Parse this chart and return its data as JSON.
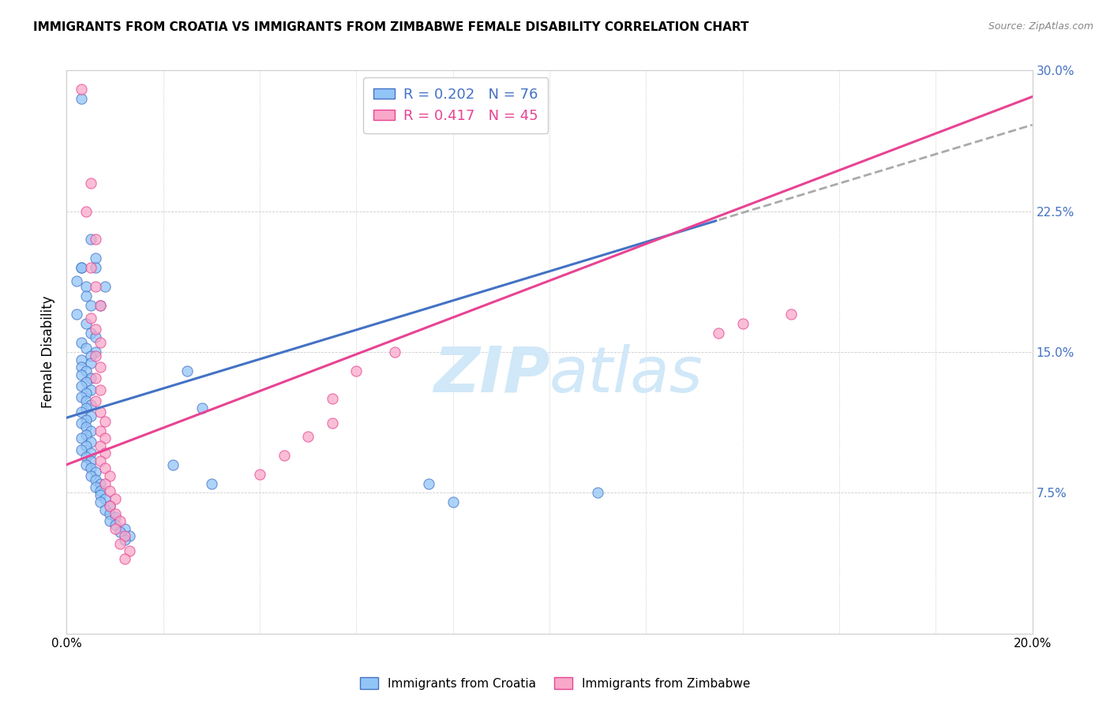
{
  "title": "IMMIGRANTS FROM CROATIA VS IMMIGRANTS FROM ZIMBABWE FEMALE DISABILITY CORRELATION CHART",
  "source": "Source: ZipAtlas.com",
  "ylabel": "Female Disability",
  "xlim": [
    0.0,
    0.2
  ],
  "ylim": [
    0.0,
    0.3
  ],
  "yticks": [
    0.075,
    0.15,
    0.225,
    0.3
  ],
  "ytick_labels": [
    "7.5%",
    "15.0%",
    "22.5%",
    "30.0%"
  ],
  "xticks": [
    0.0,
    0.02,
    0.04,
    0.06,
    0.08,
    0.1,
    0.12,
    0.14,
    0.16,
    0.18,
    0.2
  ],
  "croatia_color": "#92C5F7",
  "croatia_edge": "#4472C4",
  "zimbabwe_color": "#F9A8C9",
  "zimbabwe_edge": "#E84393",
  "croatia_R": 0.202,
  "croatia_N": 76,
  "zimbabwe_R": 0.417,
  "zimbabwe_N": 45,
  "croatia_line_color": "#4472C4",
  "zimbabwe_line_color": "#E84393",
  "dash_color": "#aaaaaa",
  "watermark_color": "#d0e8f8",
  "croatia_scatter": [
    [
      0.003,
      0.285
    ],
    [
      0.005,
      0.21
    ],
    [
      0.006,
      0.2
    ],
    [
      0.004,
      0.185
    ],
    [
      0.007,
      0.175
    ],
    [
      0.003,
      0.195
    ],
    [
      0.002,
      0.188
    ],
    [
      0.006,
      0.195
    ],
    [
      0.003,
      0.195
    ],
    [
      0.008,
      0.185
    ],
    [
      0.004,
      0.18
    ],
    [
      0.005,
      0.175
    ],
    [
      0.002,
      0.17
    ],
    [
      0.004,
      0.165
    ],
    [
      0.005,
      0.16
    ],
    [
      0.006,
      0.158
    ],
    [
      0.003,
      0.155
    ],
    [
      0.004,
      0.152
    ],
    [
      0.006,
      0.15
    ],
    [
      0.005,
      0.148
    ],
    [
      0.003,
      0.146
    ],
    [
      0.005,
      0.144
    ],
    [
      0.003,
      0.142
    ],
    [
      0.004,
      0.14
    ],
    [
      0.003,
      0.138
    ],
    [
      0.005,
      0.136
    ],
    [
      0.004,
      0.134
    ],
    [
      0.003,
      0.132
    ],
    [
      0.005,
      0.13
    ],
    [
      0.004,
      0.128
    ],
    [
      0.003,
      0.126
    ],
    [
      0.004,
      0.124
    ],
    [
      0.005,
      0.122
    ],
    [
      0.004,
      0.12
    ],
    [
      0.003,
      0.118
    ],
    [
      0.005,
      0.116
    ],
    [
      0.004,
      0.114
    ],
    [
      0.003,
      0.112
    ],
    [
      0.004,
      0.11
    ],
    [
      0.005,
      0.108
    ],
    [
      0.004,
      0.106
    ],
    [
      0.003,
      0.104
    ],
    [
      0.005,
      0.102
    ],
    [
      0.004,
      0.1
    ],
    [
      0.003,
      0.098
    ],
    [
      0.005,
      0.096
    ],
    [
      0.004,
      0.094
    ],
    [
      0.005,
      0.092
    ],
    [
      0.004,
      0.09
    ],
    [
      0.005,
      0.088
    ],
    [
      0.006,
      0.086
    ],
    [
      0.005,
      0.084
    ],
    [
      0.006,
      0.082
    ],
    [
      0.007,
      0.08
    ],
    [
      0.006,
      0.078
    ],
    [
      0.007,
      0.076
    ],
    [
      0.007,
      0.074
    ],
    [
      0.008,
      0.072
    ],
    [
      0.007,
      0.07
    ],
    [
      0.009,
      0.068
    ],
    [
      0.008,
      0.066
    ],
    [
      0.009,
      0.064
    ],
    [
      0.01,
      0.062
    ],
    [
      0.009,
      0.06
    ],
    [
      0.01,
      0.058
    ],
    [
      0.012,
      0.056
    ],
    [
      0.011,
      0.054
    ],
    [
      0.013,
      0.052
    ],
    [
      0.012,
      0.05
    ],
    [
      0.025,
      0.14
    ],
    [
      0.028,
      0.12
    ],
    [
      0.022,
      0.09
    ],
    [
      0.03,
      0.08
    ],
    [
      0.11,
      0.075
    ],
    [
      0.08,
      0.07
    ],
    [
      0.075,
      0.08
    ]
  ],
  "zimbabwe_scatter": [
    [
      0.003,
      0.29
    ],
    [
      0.005,
      0.24
    ],
    [
      0.004,
      0.225
    ],
    [
      0.006,
      0.21
    ],
    [
      0.005,
      0.195
    ],
    [
      0.006,
      0.185
    ],
    [
      0.007,
      0.175
    ],
    [
      0.005,
      0.168
    ],
    [
      0.006,
      0.162
    ],
    [
      0.007,
      0.155
    ],
    [
      0.006,
      0.148
    ],
    [
      0.007,
      0.142
    ],
    [
      0.006,
      0.136
    ],
    [
      0.007,
      0.13
    ],
    [
      0.006,
      0.124
    ],
    [
      0.007,
      0.118
    ],
    [
      0.008,
      0.113
    ],
    [
      0.007,
      0.108
    ],
    [
      0.008,
      0.104
    ],
    [
      0.007,
      0.1
    ],
    [
      0.008,
      0.096
    ],
    [
      0.007,
      0.092
    ],
    [
      0.008,
      0.088
    ],
    [
      0.009,
      0.084
    ],
    [
      0.008,
      0.08
    ],
    [
      0.009,
      0.076
    ],
    [
      0.01,
      0.072
    ],
    [
      0.009,
      0.068
    ],
    [
      0.01,
      0.064
    ],
    [
      0.011,
      0.06
    ],
    [
      0.01,
      0.056
    ],
    [
      0.012,
      0.052
    ],
    [
      0.011,
      0.048
    ],
    [
      0.013,
      0.044
    ],
    [
      0.012,
      0.04
    ],
    [
      0.04,
      0.085
    ],
    [
      0.045,
      0.095
    ],
    [
      0.05,
      0.105
    ],
    [
      0.055,
      0.112
    ],
    [
      0.055,
      0.125
    ],
    [
      0.06,
      0.14
    ],
    [
      0.068,
      0.15
    ],
    [
      0.14,
      0.165
    ],
    [
      0.135,
      0.16
    ],
    [
      0.15,
      0.17
    ]
  ]
}
